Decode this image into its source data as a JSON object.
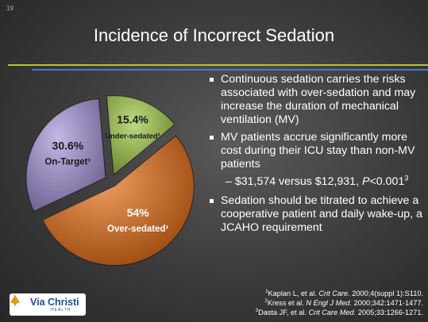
{
  "slide_number": "19",
  "chart_data": {
    "type": "pie",
    "title": "Incidence of Incorrect Sedation",
    "categories": [
      "Under-sedated¹",
      "Over-sedated¹",
      "On-Target¹"
    ],
    "values": [
      15.4,
      54,
      30.6
    ],
    "value_labels": [
      "15.4%",
      "54%",
      "30.6%"
    ],
    "colors": [
      "#9cc63c",
      "#e8680e",
      "#a48fd8"
    ]
  },
  "bullets": [
    "Continuous sedation carries the risks associated with over-sedation and may increase the duration of mechanical ventilation (MV)",
    "MV patients accrue significantly more cost during their ICU stay than non-MV patients"
  ],
  "sub_bullet": {
    "text": "– $31,574 versus $12,931, ",
    "p": "P",
    "rest": "<0.001",
    "sup": "3"
  },
  "last_bullet": "Sedation should be titrated to achieve a cooperative patient and daily wake-up, a JCAHO requirement",
  "references": [
    {
      "num": "1",
      "authors": "Kaplan L, et al. ",
      "journal": "Crit Care.",
      "rest": " 2000;4(suppl 1):S110."
    },
    {
      "num": "2",
      "authors": "Kress et al. ",
      "journal": "N Engl J Med.",
      "rest": " 2000;342:1471-1477."
    },
    {
      "num": "3",
      "authors": "Dasta JF, et al. ",
      "journal": "Crit Care Med.",
      "rest": " 2005;33:1266-1271."
    }
  ],
  "logo": {
    "name": "Via Christi",
    "tag": "HEALTH"
  }
}
